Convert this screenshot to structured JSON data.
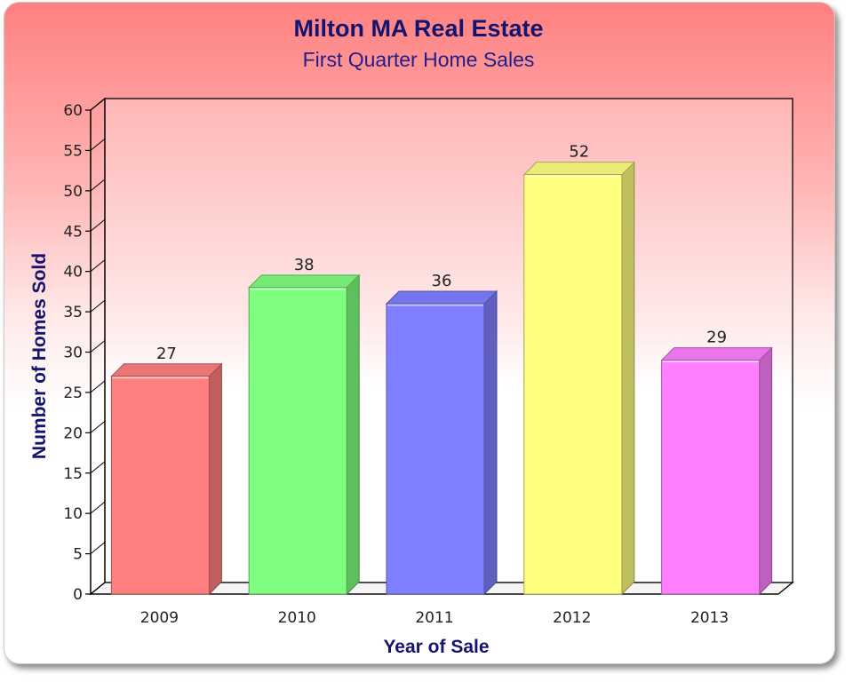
{
  "chart_data": {
    "type": "bar",
    "title": "Milton MA Real Estate",
    "subtitle": "First Quarter Home Sales",
    "xlabel": "Year of Sale",
    "ylabel": "Number of Homes Sold",
    "categories": [
      "2009",
      "2010",
      "2011",
      "2012",
      "2013"
    ],
    "values": [
      27,
      38,
      36,
      52,
      29
    ],
    "data_labels": [
      "27",
      "38",
      "36",
      "52",
      "29"
    ],
    "ylim": [
      0,
      60
    ],
    "yticks": [
      "0",
      "5",
      "10",
      "15",
      "20",
      "25",
      "30",
      "35",
      "40",
      "45",
      "50",
      "55",
      "60"
    ],
    "grid": false,
    "legend": "none",
    "bar_colors": [
      "#ff7f7f",
      "#7fff7f",
      "#7f7fff",
      "#ffff7f",
      "#ff7fff"
    ]
  }
}
